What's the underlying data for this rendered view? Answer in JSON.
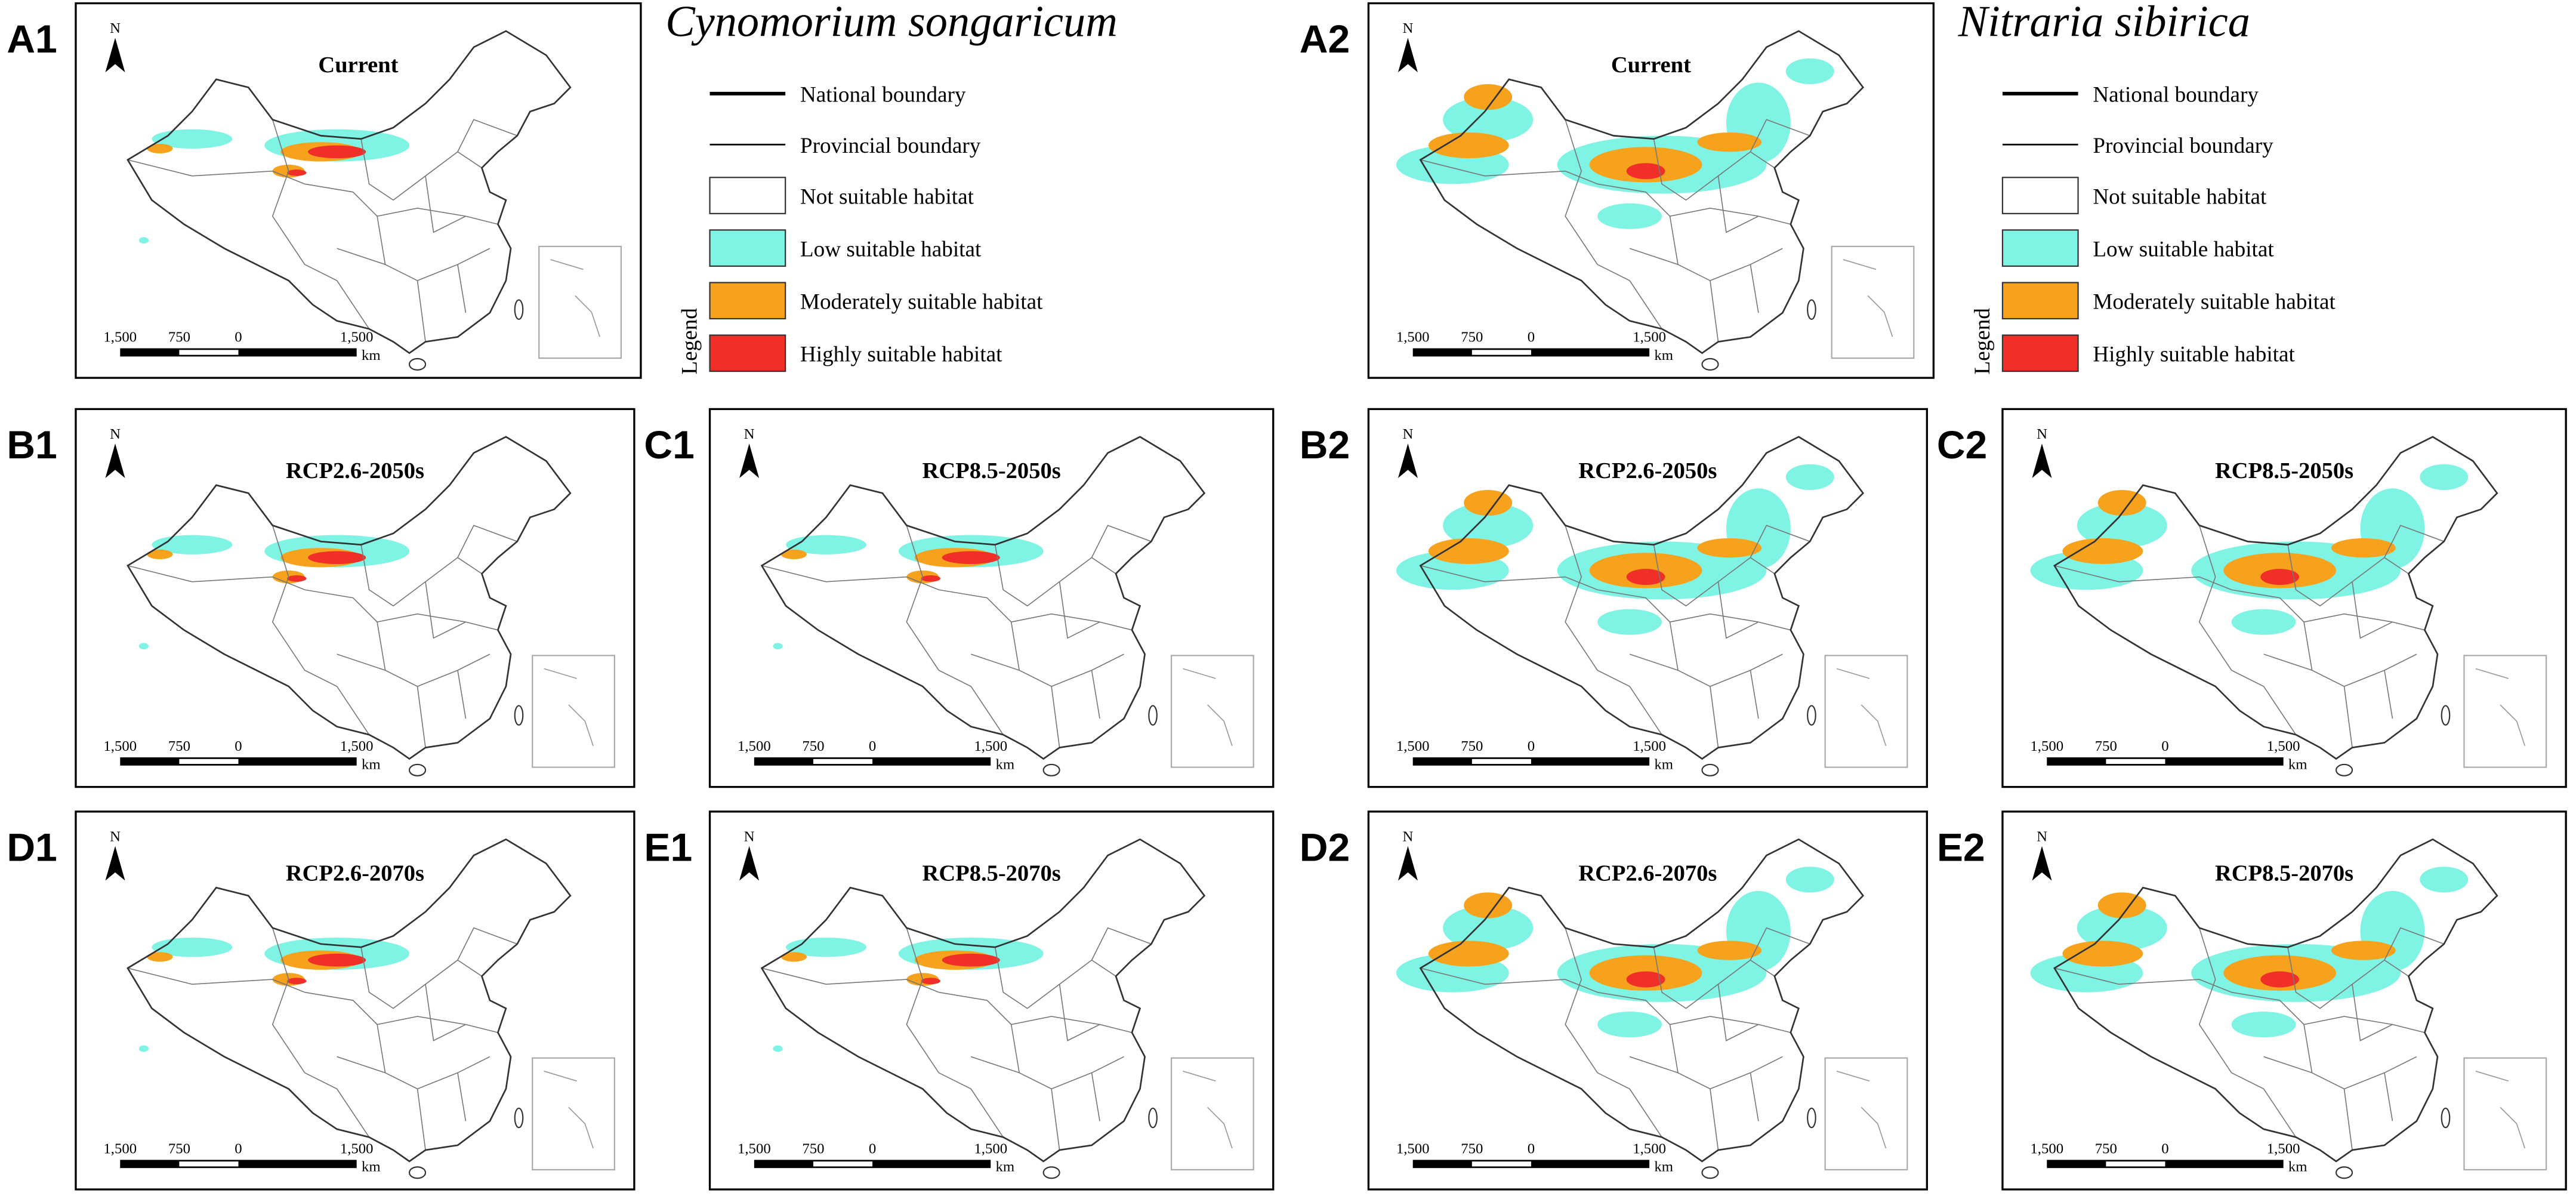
{
  "north": "N",
  "scale_bar": {
    "labels": [
      "1,500",
      "750",
      "0",
      "1,500"
    ],
    "unit": "km"
  },
  "legend": {
    "title": "Legend",
    "items": [
      "National boundary",
      "Provincial boundary",
      "Not suitable habitat",
      "Low suitable habitat",
      "Moderately suitable habitat",
      "Highly suitable habitat"
    ]
  },
  "species": [
    {
      "name": "Cynomorium songaricum",
      "panels": [
        {
          "label": "A1",
          "title": "Current"
        },
        {
          "label": "B1",
          "title": "RCP2.6-2050s"
        },
        {
          "label": "C1",
          "title": "RCP8.5-2050s"
        },
        {
          "label": "D1",
          "title": "RCP2.6-2070s"
        },
        {
          "label": "E1",
          "title": "RCP8.5-2070s"
        }
      ]
    },
    {
      "name": "Nitraria sibirica",
      "panels": [
        {
          "label": "A2",
          "title": "Current"
        },
        {
          "label": "B2",
          "title": "RCP2.6-2050s"
        },
        {
          "label": "C2",
          "title": "RCP8.5-2050s"
        },
        {
          "label": "D2",
          "title": "RCP2.6-2070s"
        },
        {
          "label": "E2",
          "title": "RCP8.5-2070s"
        }
      ]
    }
  ]
}
